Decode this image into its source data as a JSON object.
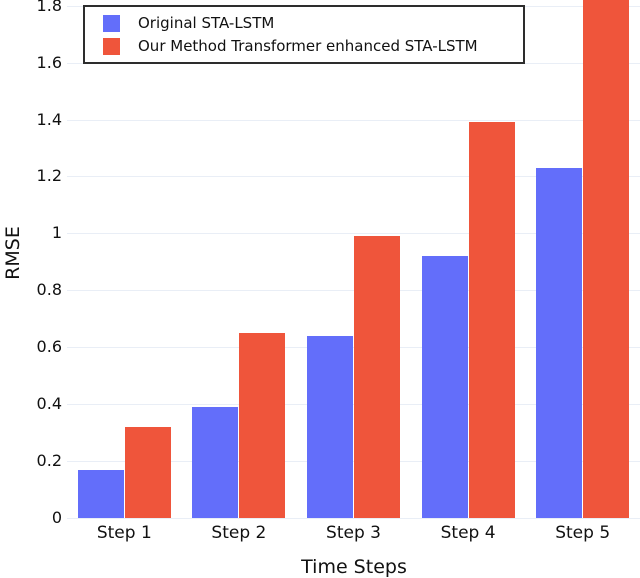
{
  "figure": {
    "background": "#ffffff",
    "text_color": "#111111",
    "grid_color": "#e9eef6",
    "legend_border_color": "#2d2d2d"
  },
  "chart_data": {
    "type": "bar",
    "title": "",
    "xlabel": "Time Steps",
    "ylabel": "RMSE",
    "categories": [
      "Step 1",
      "Step 2",
      "Step 3",
      "Step 4",
      "Step 5"
    ],
    "series": [
      {
        "name": "Original STA-LSTM",
        "color": "#636EFA",
        "values": [
          0.17,
          0.39,
          0.64,
          0.92,
          1.23
        ]
      },
      {
        "name": "Our Method Transformer enhanced STA-LSTM",
        "color": "#EF553B",
        "values": [
          0.32,
          0.65,
          0.99,
          1.39,
          1.85
        ]
      }
    ],
    "ylim": [
      0,
      1.82
    ],
    "yticks": [
      0,
      0.2,
      0.4,
      0.6,
      0.8,
      1,
      1.2,
      1.4,
      1.6,
      1.8
    ],
    "ytick_labels": [
      "0",
      "0.2",
      "0.4",
      "0.6",
      "0.8",
      "1",
      "1.2",
      "1.4",
      "1.6",
      "1.8"
    ],
    "grid": true,
    "legend_position": "top-left",
    "bar_clipped_at_top": "Step 5 second series bar exceeds visible axis range"
  }
}
